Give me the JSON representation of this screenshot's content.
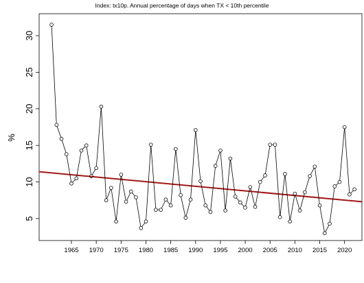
{
  "chart_data": {
    "type": "line",
    "title": "Index: tx10p. Annual percentage of days when TX < 10th percentile",
    "xlabel": "",
    "ylabel": "%",
    "xlim": [
      1958.5,
      2023.5
    ],
    "ylim": [
      2.0,
      33.0
    ],
    "x_ticks": [
      1965,
      1970,
      1975,
      1980,
      1985,
      1990,
      1995,
      2000,
      2005,
      2010,
      2015,
      2020
    ],
    "y_ticks": [
      5,
      10,
      15,
      20,
      25,
      30
    ],
    "grid": false,
    "legend": "none",
    "series": [
      {
        "style": "line+open-circle",
        "color": "#000000",
        "x": [
          1961,
          1962,
          1963,
          1964,
          1965,
          1966,
          1967,
          1968,
          1969,
          1970,
          1971,
          1972,
          1973,
          1974,
          1975,
          1976,
          1977,
          1978,
          1979,
          1980,
          1981,
          1982,
          1983,
          1984,
          1985,
          1986,
          1987,
          1988,
          1989,
          1990,
          1991,
          1992,
          1993,
          1994,
          1995,
          1996,
          1997,
          1998,
          1999,
          2000,
          2001,
          2002,
          2003,
          2004,
          2005,
          2006,
          2007,
          2008,
          2009,
          2010,
          2011,
          2012,
          2013,
          2014,
          2015,
          2016,
          2017,
          2018,
          2019,
          2020,
          2021,
          2022
        ],
        "y": [
          31.5,
          17.8,
          15.9,
          13.8,
          9.8,
          10.5,
          14.3,
          15.0,
          10.8,
          11.9,
          20.3,
          7.5,
          9.2,
          4.6,
          11.0,
          7.3,
          8.7,
          7.9,
          3.7,
          4.6,
          15.1,
          6.2,
          6.2,
          7.6,
          6.8,
          14.5,
          8.2,
          5.1,
          7.6,
          17.1,
          10.1,
          6.8,
          5.9,
          12.2,
          14.3,
          6.1,
          13.2,
          8.0,
          7.2,
          6.5,
          9.3,
          6.6,
          10.0,
          10.9,
          15.1,
          15.1,
          5.2,
          11.1,
          4.6,
          8.4,
          6.1,
          8.6,
          10.8,
          12.1,
          6.8,
          3.0,
          4.3,
          9.4,
          10.0,
          17.5,
          8.3,
          9.0
        ]
      },
      {
        "name": "",
        "style": "trend-line",
        "color": "#a31616",
        "x": [
          1958.5,
          2023.5
        ],
        "y": [
          11.4,
          7.3
        ]
      }
    ]
  }
}
